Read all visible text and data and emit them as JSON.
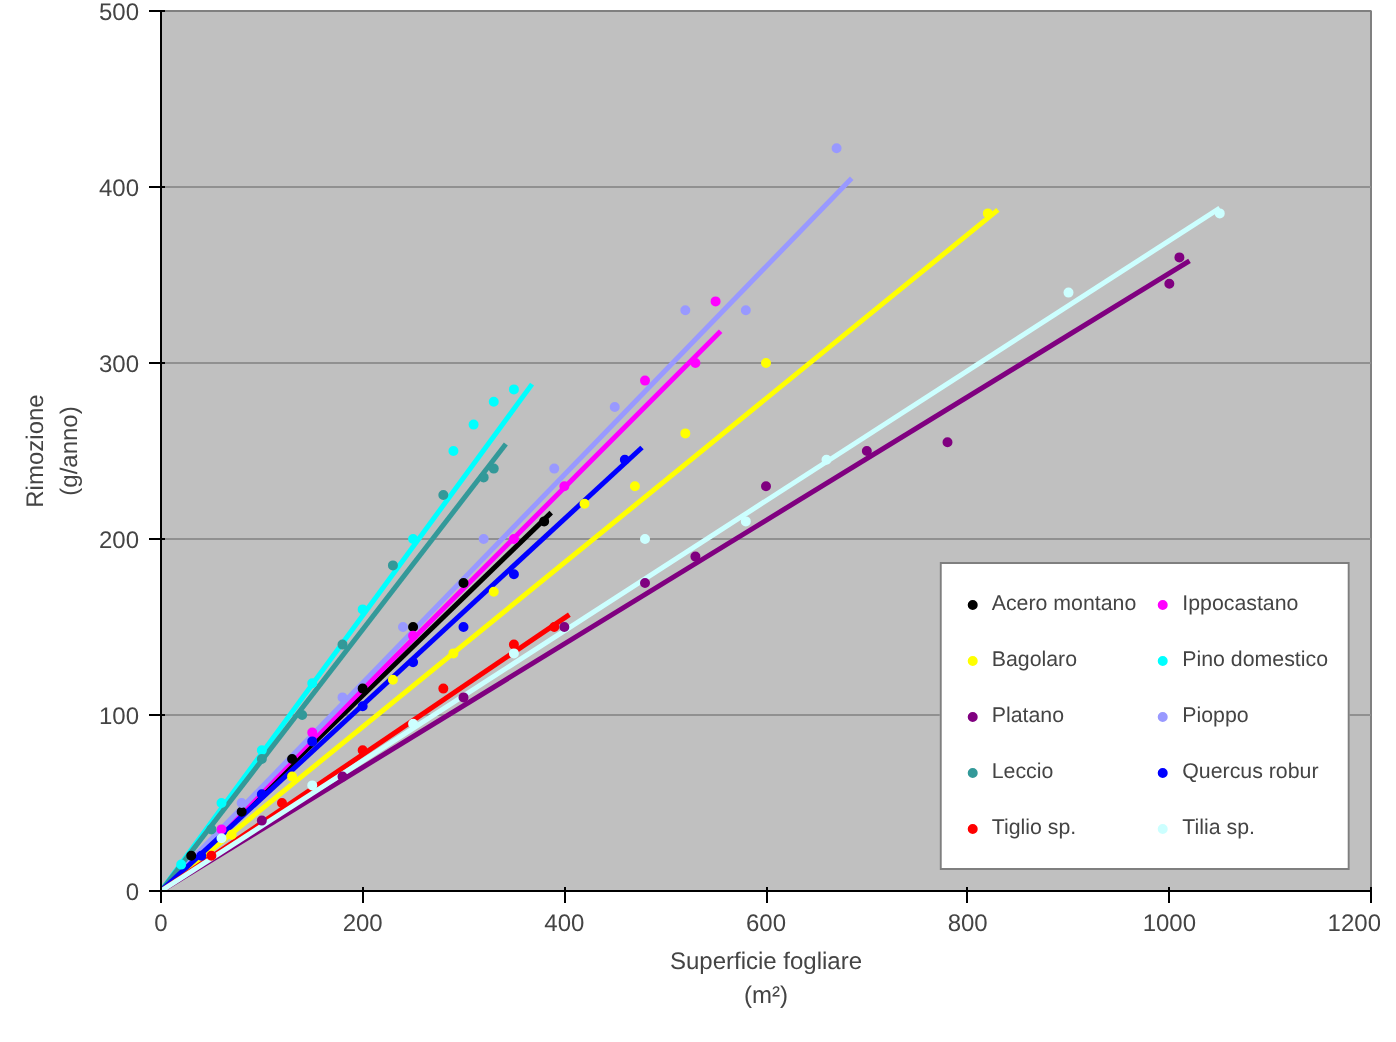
{
  "chart_data": {
    "type": "scatter",
    "xlabel": "Superficie fogliare\n(m²)",
    "ylabel": "Rimozione\n(g/anno)",
    "xlim": [
      0,
      1200
    ],
    "ylim": [
      0,
      500
    ],
    "xticks": [
      0,
      200,
      400,
      600,
      800,
      1000,
      1200
    ],
    "yticks": [
      0,
      100,
      200,
      300,
      400,
      500
    ],
    "grid": "y",
    "legend": "bottom right",
    "marker": "circle",
    "series": [
      {
        "name": "Acero montano",
        "color": "#000000",
        "x": [
          30,
          80,
          130,
          200,
          250,
          300,
          380
        ],
        "values": [
          20,
          45,
          75,
          115,
          150,
          175,
          210
        ]
      },
      {
        "name": "Ippocastano",
        "color": "#ff00ff",
        "x": [
          60,
          150,
          250,
          350,
          400,
          480,
          530,
          550
        ],
        "values": [
          35,
          90,
          145,
          200,
          230,
          290,
          300,
          335
        ]
      },
      {
        "name": "Bagolaro",
        "color": "#ffff00",
        "x": [
          70,
          130,
          230,
          290,
          330,
          420,
          470,
          520,
          600,
          820
        ],
        "values": [
          32,
          65,
          120,
          135,
          170,
          220,
          230,
          260,
          300,
          385
        ]
      },
      {
        "name": "Pino domestico",
        "color": "#00ffff",
        "x": [
          20,
          60,
          100,
          150,
          200,
          250,
          290,
          310,
          330,
          350
        ],
        "values": [
          15,
          50,
          80,
          118,
          160,
          200,
          250,
          265,
          278,
          285
        ]
      },
      {
        "name": "Platano",
        "color": "#800080",
        "x": [
          100,
          180,
          300,
          400,
          480,
          530,
          600,
          700,
          780,
          1000,
          1010
        ],
        "values": [
          40,
          65,
          110,
          150,
          175,
          190,
          230,
          250,
          255,
          345,
          360
        ]
      },
      {
        "name": "Pioppo",
        "color": "#9999ff",
        "x": [
          80,
          180,
          240,
          320,
          390,
          450,
          520,
          580,
          670
        ],
        "values": [
          50,
          110,
          150,
          200,
          240,
          275,
          330,
          330,
          422
        ]
      },
      {
        "name": "Leccio",
        "color": "#339999",
        "x": [
          50,
          100,
          140,
          180,
          230,
          280,
          320,
          330
        ],
        "values": [
          35,
          75,
          100,
          140,
          185,
          225,
          235,
          240
        ]
      },
      {
        "name": "Quercus robur",
        "color": "#0000ff",
        "x": [
          40,
          100,
          150,
          200,
          250,
          300,
          350,
          460
        ],
        "values": [
          20,
          55,
          85,
          105,
          130,
          150,
          180,
          245
        ]
      },
      {
        "name": "Tiglio sp.",
        "color": "#ff0000",
        "x": [
          50,
          120,
          200,
          280,
          350,
          390
        ],
        "values": [
          20,
          50,
          80,
          115,
          140,
          150
        ]
      },
      {
        "name": "Tilia sp.",
        "color": "#ccffff",
        "x": [
          60,
          150,
          250,
          350,
          480,
          580,
          660,
          900,
          1050
        ],
        "values": [
          30,
          60,
          95,
          135,
          200,
          210,
          245,
          340,
          385
        ]
      },
      {
        "type": "line",
        "marker": "none",
        "color": "#000000",
        "x": [
          0,
          387
        ],
        "values": [
          0,
          215
        ]
      },
      {
        "type": "line",
        "marker": "none",
        "color": "#ff00ff",
        "x": [
          0,
          555
        ],
        "values": [
          0,
          318
        ]
      },
      {
        "type": "line",
        "marker": "none",
        "color": "#ffff00",
        "x": [
          0,
          830
        ],
        "values": [
          0,
          387
        ]
      },
      {
        "type": "line",
        "marker": "none",
        "color": "#00ffff",
        "x": [
          0,
          368
        ],
        "values": [
          0,
          288
        ]
      },
      {
        "type": "line",
        "marker": "none",
        "color": "#800080",
        "x": [
          0,
          1020
        ],
        "values": [
          0,
          358
        ]
      },
      {
        "type": "line",
        "marker": "none",
        "color": "#9999ff",
        "x": [
          0,
          685
        ],
        "values": [
          0,
          405
        ]
      },
      {
        "type": "line",
        "marker": "none",
        "color": "#339999",
        "x": [
          0,
          342
        ],
        "values": [
          0,
          254
        ]
      },
      {
        "type": "line",
        "marker": "none",
        "color": "#0000ff",
        "x": [
          0,
          477
        ],
        "values": [
          0,
          252
        ]
      },
      {
        "type": "line",
        "marker": "none",
        "color": "#ff0000",
        "x": [
          0,
          405
        ],
        "values": [
          0,
          157
        ]
      },
      {
        "type": "line",
        "marker": "none",
        "color": "#ccffff",
        "x": [
          0,
          1050
        ],
        "values": [
          0,
          388
        ]
      }
    ]
  }
}
